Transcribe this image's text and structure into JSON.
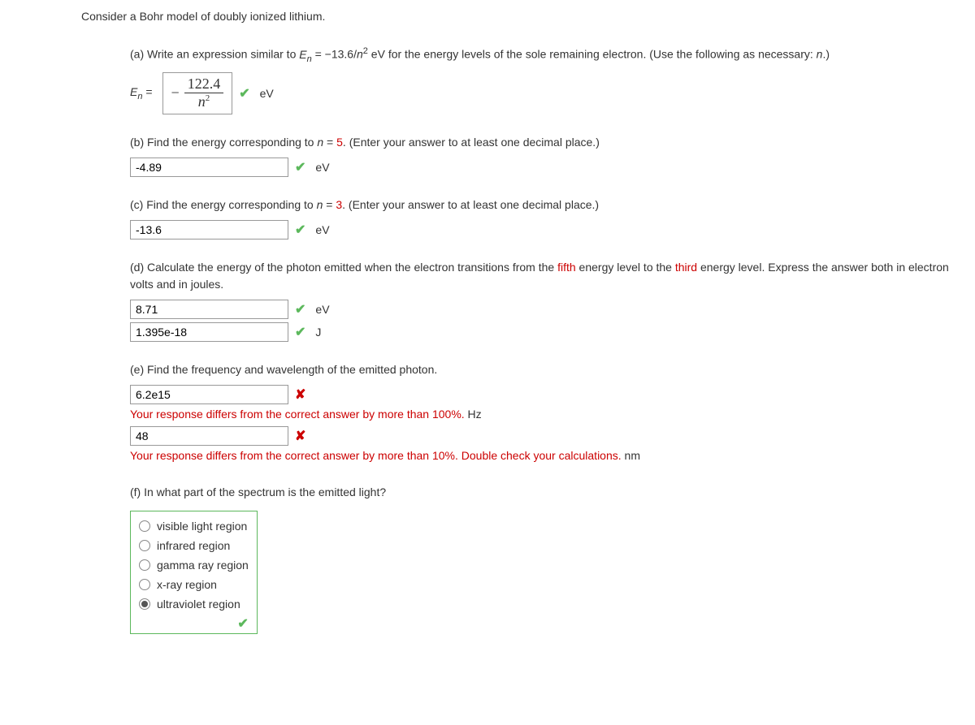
{
  "intro": "Consider a Bohr model of doubly ionized lithium.",
  "parts": {
    "a": {
      "text_before": "(a) Write an expression similar to ",
      "en": "E",
      "eq": " = −13.6/",
      "n": "n",
      "after_n": " eV for the energy levels of the sole remaining electron. (Use the following as necessary: ",
      "var": "n",
      "after_var": ".)",
      "label": "E",
      "equals": " = ",
      "formula_num": "122.4",
      "formula_den_base": "n",
      "formula_den_exp": "2",
      "unit": "eV"
    },
    "b": {
      "text_before": "(b) Find the energy corresponding to ",
      "n_eq": "n",
      "eq": " = ",
      "val": "5",
      "after": ". (Enter your answer to at least one decimal place.)",
      "answer": "-4.89",
      "unit": "eV"
    },
    "c": {
      "text_before": "(c) Find the energy corresponding to ",
      "n_eq": "n",
      "eq": " = ",
      "val": "3",
      "after": ". (Enter your answer to at least one decimal place.)",
      "answer": "-13.6",
      "unit": "eV"
    },
    "d": {
      "text_before": "(d) Calculate the energy of the photon emitted when the electron transitions from the ",
      "hl1": "fifth",
      "mid": " energy level to the ",
      "hl2": "third",
      "after": " energy level. Express the answer both in electron volts and in joules.",
      "answer1": "8.71",
      "unit1": "eV",
      "answer2": "1.395e-18",
      "unit2": "J"
    },
    "e": {
      "text": "(e) Find the frequency and wavelength of the emitted photon.",
      "answer1": "6.2e15",
      "fb1_text": "Your response differs from the correct answer by more than 100%.",
      "fb1_unit": "Hz",
      "answer2": "48",
      "fb2_text": "Your response differs from the correct answer by more than 10%. Double check your calculations.",
      "fb2_unit": "nm"
    },
    "f": {
      "text": "(f) In what part of the spectrum is the emitted light?",
      "options": {
        "o1": "visible light region",
        "o2": "infrared region",
        "o3": "gamma ray region",
        "o4": "x-ray region",
        "o5": "ultraviolet region"
      }
    }
  },
  "icons": {
    "check": "✔",
    "cross": "✘",
    "minus": "−"
  }
}
